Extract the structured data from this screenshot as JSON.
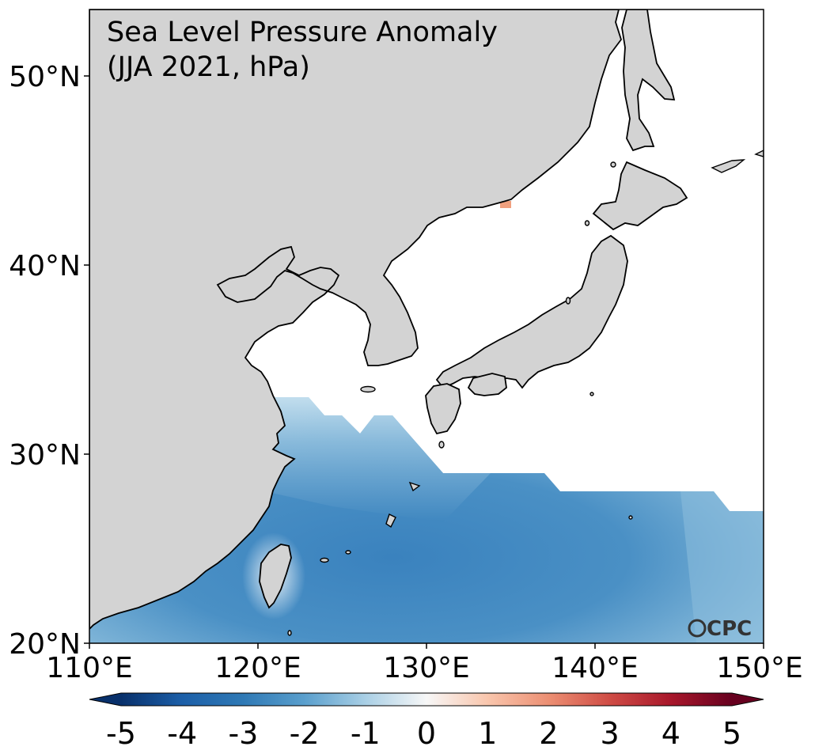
{
  "title": {
    "line1": "Sea Level Pressure Anomaly",
    "line2": "(JJA 2021, hPa)"
  },
  "map": {
    "lon_range": [
      110,
      150
    ],
    "lat_range": [
      20,
      53.5
    ],
    "land_color": "#d3d3d3",
    "ocean_missing_color": "#ffffff",
    "coastline_color": "#000000",
    "lon_ticks": [
      "110°E",
      "120°E",
      "130°E",
      "140°E",
      "150°E"
    ],
    "lat_ticks": [
      "20°N",
      "30°N",
      "40°N",
      "50°N"
    ],
    "field_summary": "negative SLP anomalies (about -1 to -3 hPa) over the western North Pacific south of ~30°N; small positive patch near 43°N 134°E"
  },
  "colorbar": {
    "cmap": "RdBu_r",
    "range": [
      -5,
      5
    ],
    "extend": "both",
    "labels": [
      "-5",
      "-4",
      "-3",
      "-2",
      "-1",
      "0",
      "1",
      "2",
      "3",
      "4",
      "5"
    ]
  },
  "logo": "CPC"
}
